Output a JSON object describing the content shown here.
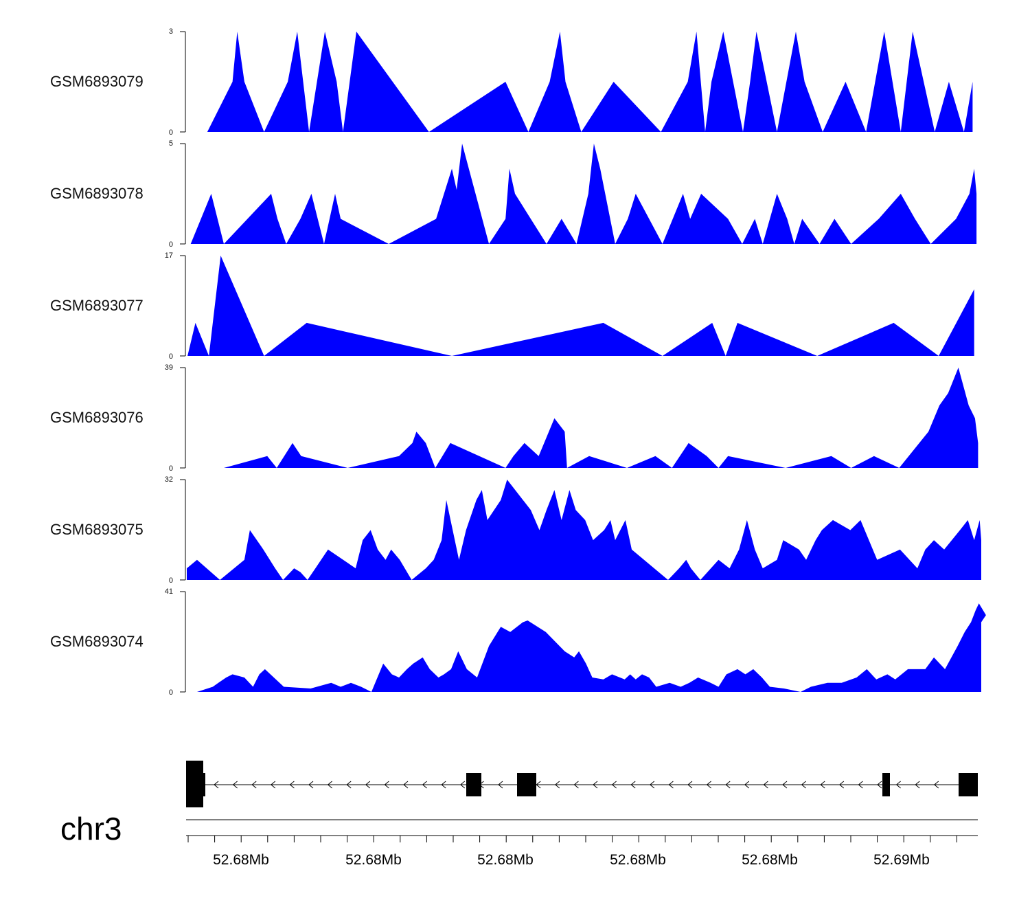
{
  "colors": {
    "signal": "#0000ff",
    "axis": "#000000",
    "gene": "#000000"
  },
  "chart_data": {
    "type": "area",
    "x_range": [
      0,
      100
    ],
    "tracks": [
      {
        "name": "GSM6893079",
        "ymax": 3,
        "points": [
          [
            2.6,
            0
          ],
          [
            5.8,
            1.5
          ],
          [
            6.4,
            3
          ],
          [
            7.3,
            1.5
          ],
          [
            9.8,
            0
          ],
          [
            12.8,
            1.5
          ],
          [
            14.0,
            3
          ],
          [
            15.5,
            0
          ],
          [
            17.5,
            3
          ],
          [
            19.0,
            1.5
          ],
          [
            19.8,
            0
          ],
          [
            21.5,
            3
          ],
          [
            30.7,
            0
          ],
          [
            40.4,
            1.5
          ],
          [
            43.3,
            0
          ],
          [
            46.0,
            1.5
          ],
          [
            47.3,
            3
          ],
          [
            48.0,
            1.5
          ],
          [
            50.0,
            0
          ],
          [
            54.1,
            1.5
          ],
          [
            60.1,
            0
          ],
          [
            63.5,
            1.5
          ],
          [
            64.6,
            3
          ],
          [
            65.7,
            0
          ],
          [
            66.5,
            1.5
          ],
          [
            68.0,
            3
          ],
          [
            70.5,
            0
          ],
          [
            71.4,
            1.5
          ],
          [
            72.2,
            3
          ],
          [
            74.8,
            0
          ],
          [
            77.2,
            3
          ],
          [
            78.3,
            1.5
          ],
          [
            80.6,
            0
          ],
          [
            83.5,
            1.5
          ],
          [
            86.1,
            0
          ],
          [
            88.4,
            3
          ],
          [
            90.5,
            0
          ],
          [
            92.0,
            3
          ],
          [
            94.8,
            0
          ],
          [
            96.6,
            1.5
          ],
          [
            98.5,
            0
          ],
          [
            99.6,
            1.5
          ],
          [
            99.6,
            0
          ]
        ]
      },
      {
        "name": "GSM6893078",
        "ymax": 5,
        "points": [
          [
            0.5,
            0
          ],
          [
            3.1,
            2.5
          ],
          [
            4.7,
            0
          ],
          [
            10.7,
            2.5
          ],
          [
            11.5,
            1.25
          ],
          [
            12.6,
            0
          ],
          [
            14.4,
            1.25
          ],
          [
            15.8,
            2.5
          ],
          [
            17.4,
            0
          ],
          [
            18.8,
            2.5
          ],
          [
            19.5,
            1.25
          ],
          [
            25.6,
            0
          ],
          [
            31.6,
            1.25
          ],
          [
            33.6,
            3.75
          ],
          [
            34.2,
            2.7
          ],
          [
            34.9,
            5
          ],
          [
            38.3,
            0
          ],
          [
            40.4,
            1.25
          ],
          [
            40.9,
            3.75
          ],
          [
            41.6,
            2.5
          ],
          [
            45.6,
            0
          ],
          [
            47.5,
            1.25
          ],
          [
            49.4,
            0
          ],
          [
            50.9,
            2.5
          ],
          [
            51.6,
            5
          ],
          [
            52.4,
            3.75
          ],
          [
            54.3,
            0
          ],
          [
            55.9,
            1.25
          ],
          [
            56.9,
            2.5
          ],
          [
            60.3,
            0
          ],
          [
            62.9,
            2.5
          ],
          [
            63.8,
            1.25
          ],
          [
            65.2,
            2.5
          ],
          [
            68.6,
            1.25
          ],
          [
            70.4,
            0
          ],
          [
            72.0,
            1.25
          ],
          [
            73.0,
            0
          ],
          [
            74.8,
            2.5
          ],
          [
            76.1,
            1.25
          ],
          [
            77.0,
            0
          ],
          [
            78.0,
            1.25
          ],
          [
            80.2,
            0
          ],
          [
            82.1,
            1.25
          ],
          [
            84.2,
            0
          ],
          [
            87.7,
            1.25
          ],
          [
            90.5,
            2.5
          ],
          [
            92.3,
            1.25
          ],
          [
            94.3,
            0
          ],
          [
            97.5,
            1.25
          ],
          [
            99.2,
            2.5
          ],
          [
            99.8,
            3.75
          ],
          [
            100.1,
            2.5
          ],
          [
            100.1,
            0
          ]
        ]
      },
      {
        "name": "GSM6893077",
        "ymax": 17,
        "points": [
          [
            0.1,
            0
          ],
          [
            1.1,
            5.6
          ],
          [
            2.8,
            0
          ],
          [
            4.3,
            17
          ],
          [
            9.8,
            0
          ],
          [
            15.2,
            5.6
          ],
          [
            33.6,
            0
          ],
          [
            52.8,
            5.6
          ],
          [
            60.3,
            0
          ],
          [
            66.6,
            5.6
          ],
          [
            68.3,
            0
          ],
          [
            69.8,
            5.6
          ],
          [
            79.9,
            0
          ],
          [
            89.6,
            5.6
          ],
          [
            95.3,
            0
          ],
          [
            99.8,
            11.3
          ],
          [
            99.8,
            0
          ]
        ]
      },
      {
        "name": "GSM6893076",
        "ymax": 39,
        "points": [
          [
            4.7,
            0
          ],
          [
            10.2,
            4.6
          ],
          [
            11.4,
            0
          ],
          [
            13.4,
            9.7
          ],
          [
            14.5,
            4.6
          ],
          [
            20.4,
            0
          ],
          [
            26.9,
            4.6
          ],
          [
            28.6,
            9.7
          ],
          [
            29.1,
            14.1
          ],
          [
            30.3,
            9.7
          ],
          [
            31.5,
            0
          ],
          [
            33.4,
            9.7
          ],
          [
            40.4,
            0
          ],
          [
            41.4,
            4.6
          ],
          [
            42.8,
            9.7
          ],
          [
            44.6,
            4.6
          ],
          [
            46.6,
            19.3
          ],
          [
            47.9,
            14.1
          ],
          [
            48.2,
            0
          ],
          [
            51.0,
            4.6
          ],
          [
            55.8,
            0
          ],
          [
            59.4,
            4.6
          ],
          [
            61.5,
            0
          ],
          [
            63.6,
            9.7
          ],
          [
            65.9,
            4.6
          ],
          [
            67.4,
            0
          ],
          [
            68.6,
            4.6
          ],
          [
            75.9,
            0
          ],
          [
            81.7,
            4.6
          ],
          [
            84.2,
            0
          ],
          [
            87.1,
            4.6
          ],
          [
            90.3,
            0
          ],
          [
            94.0,
            14.1
          ],
          [
            95.4,
            24.3
          ],
          [
            96.5,
            29.1
          ],
          [
            97.8,
            39
          ],
          [
            99.1,
            24.3
          ],
          [
            99.9,
            19.3
          ],
          [
            100.3,
            9.7
          ],
          [
            100.3,
            0
          ]
        ]
      },
      {
        "name": "GSM6893075",
        "ymax": 32,
        "points": [
          [
            0,
            0
          ],
          [
            0.0,
            3.7
          ],
          [
            1.3,
            6.4
          ],
          [
            4.2,
            0
          ],
          [
            7.3,
            6.4
          ],
          [
            8.0,
            15.9
          ],
          [
            9.7,
            9.7
          ],
          [
            11.2,
            3.7
          ],
          [
            12.2,
            0
          ],
          [
            13.6,
            3.7
          ],
          [
            14.4,
            2.5
          ],
          [
            15.3,
            0
          ],
          [
            16.3,
            3.7
          ],
          [
            17.9,
            9.7
          ],
          [
            21.4,
            3.7
          ],
          [
            22.3,
            12.7
          ],
          [
            23.3,
            15.9
          ],
          [
            24.2,
            9.7
          ],
          [
            25.2,
            6.4
          ],
          [
            25.9,
            9.7
          ],
          [
            27.0,
            6.4
          ],
          [
            28.5,
            0
          ],
          [
            30.3,
            3.7
          ],
          [
            31.3,
            6.4
          ],
          [
            32.3,
            12.7
          ],
          [
            32.9,
            25.5
          ],
          [
            34.5,
            6.4
          ],
          [
            35.4,
            15.9
          ],
          [
            36.7,
            25.5
          ],
          [
            37.4,
            28.7
          ],
          [
            38.1,
            19.1
          ],
          [
            39.8,
            25.5
          ],
          [
            40.6,
            32
          ],
          [
            43.6,
            22.3
          ],
          [
            44.7,
            15.9
          ],
          [
            45.6,
            22.3
          ],
          [
            46.6,
            28.7
          ],
          [
            47.5,
            19.1
          ],
          [
            48.5,
            28.7
          ],
          [
            49.3,
            22.3
          ],
          [
            50.5,
            19.1
          ],
          [
            51.5,
            12.7
          ],
          [
            52.9,
            15.9
          ],
          [
            53.7,
            19.1
          ],
          [
            54.3,
            12.7
          ],
          [
            55.6,
            19.1
          ],
          [
            56.4,
            9.7
          ],
          [
            61.0,
            0
          ],
          [
            62.4,
            3.7
          ],
          [
            63.3,
            6.4
          ],
          [
            63.9,
            3.7
          ],
          [
            65.1,
            0
          ],
          [
            67.4,
            6.4
          ],
          [
            68.8,
            3.7
          ],
          [
            70.0,
            9.7
          ],
          [
            71.0,
            19.1
          ],
          [
            72.0,
            9.7
          ],
          [
            73.0,
            3.7
          ],
          [
            74.8,
            6.4
          ],
          [
            75.6,
            12.7
          ],
          [
            77.6,
            9.7
          ],
          [
            78.5,
            6.4
          ],
          [
            79.7,
            12.7
          ],
          [
            80.5,
            15.9
          ],
          [
            81.9,
            19.1
          ],
          [
            84.1,
            15.9
          ],
          [
            85.4,
            19.1
          ],
          [
            87.5,
            6.4
          ],
          [
            90.4,
            9.7
          ],
          [
            92.6,
            3.7
          ],
          [
            93.6,
            9.7
          ],
          [
            94.7,
            12.7
          ],
          [
            96.0,
            9.7
          ],
          [
            98.0,
            15.9
          ],
          [
            99.0,
            19.1
          ],
          [
            99.8,
            12.7
          ],
          [
            100.5,
            19.1
          ],
          [
            100.7,
            12.7
          ],
          [
            100.7,
            0
          ]
        ]
      },
      {
        "name": "GSM6893074",
        "ymax": 41,
        "points": [
          [
            1.3,
            0
          ],
          [
            3.3,
            2.1
          ],
          [
            4.0,
            3.7
          ],
          [
            5.0,
            5.9
          ],
          [
            5.8,
            7.2
          ],
          [
            7.3,
            5.9
          ],
          [
            8.4,
            2.1
          ],
          [
            9.2,
            7.2
          ],
          [
            9.9,
            9.3
          ],
          [
            12.3,
            2.1
          ],
          [
            15.7,
            1.4
          ],
          [
            18.3,
            3.7
          ],
          [
            19.5,
            2.1
          ],
          [
            20.8,
            3.7
          ],
          [
            22.1,
            2.1
          ],
          [
            23.4,
            0
          ],
          [
            24.9,
            11.6
          ],
          [
            26.0,
            7.2
          ],
          [
            26.9,
            5.9
          ],
          [
            27.9,
            9.3
          ],
          [
            28.7,
            11.6
          ],
          [
            29.9,
            14.1
          ],
          [
            30.8,
            9.3
          ],
          [
            31.9,
            5.9
          ],
          [
            32.6,
            7.2
          ],
          [
            33.5,
            9.3
          ],
          [
            34.4,
            16.6
          ],
          [
            35.5,
            9.3
          ],
          [
            36.8,
            5.9
          ],
          [
            38.3,
            18.8
          ],
          [
            39.8,
            26.6
          ],
          [
            41.0,
            24.5
          ],
          [
            42.6,
            28.5
          ],
          [
            43.2,
            29.2
          ],
          [
            45.5,
            24.5
          ],
          [
            47.9,
            16.6
          ],
          [
            49.1,
            14.1
          ],
          [
            49.7,
            16.6
          ],
          [
            50.6,
            11.6
          ],
          [
            51.4,
            5.9
          ],
          [
            52.8,
            5.1
          ],
          [
            53.9,
            7.2
          ],
          [
            55.5,
            5.1
          ],
          [
            56.2,
            7.2
          ],
          [
            56.9,
            5.1
          ],
          [
            57.7,
            7.2
          ],
          [
            58.6,
            5.9
          ],
          [
            59.5,
            2.1
          ],
          [
            61.2,
            3.7
          ],
          [
            62.6,
            2.1
          ],
          [
            63.7,
            3.7
          ],
          [
            64.8,
            5.9
          ],
          [
            66.4,
            3.7
          ],
          [
            67.4,
            2.1
          ],
          [
            68.4,
            7.2
          ],
          [
            69.8,
            9.3
          ],
          [
            70.8,
            7.2
          ],
          [
            71.8,
            9.3
          ],
          [
            72.9,
            5.9
          ],
          [
            73.9,
            2.1
          ],
          [
            75.7,
            1.4
          ],
          [
            77.8,
            0
          ],
          [
            79.1,
            2.1
          ],
          [
            81.2,
            3.7
          ],
          [
            83.0,
            3.7
          ],
          [
            84.9,
            5.9
          ],
          [
            86.2,
            9.3
          ],
          [
            87.4,
            5.1
          ],
          [
            88.8,
            7.2
          ],
          [
            89.8,
            5.1
          ],
          [
            91.4,
            9.3
          ],
          [
            93.6,
            9.3
          ],
          [
            94.7,
            14.1
          ],
          [
            96.1,
            9.3
          ],
          [
            97.7,
            18.8
          ],
          [
            98.6,
            24.5
          ],
          [
            99.4,
            28.5
          ],
          [
            100.0,
            33.5
          ],
          [
            100.4,
            36.2
          ],
          [
            101.3,
            31.4
          ],
          [
            100.7,
            28.5
          ],
          [
            100.7,
            0
          ]
        ]
      }
    ]
  },
  "gene_track": {
    "arrow_direction": "left"
  },
  "genome_axis": {
    "chromosome": "chr3",
    "tick_labels": [
      "52.68Mb",
      "52.68Mb",
      "52.68Mb",
      "52.68Mb",
      "52.68Mb",
      "52.69Mb"
    ]
  }
}
